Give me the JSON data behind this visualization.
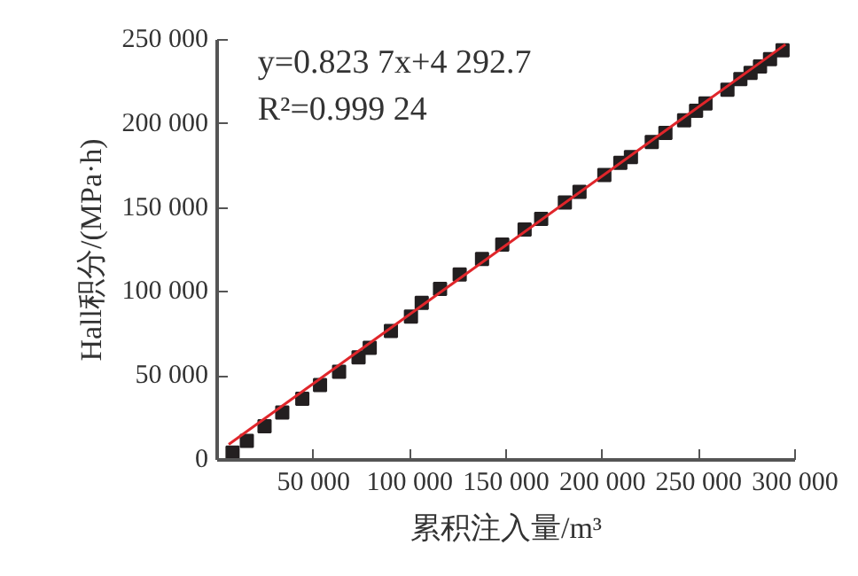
{
  "chart_data": {
    "type": "scatter",
    "xlabel": "累积注入量/m³",
    "ylabel": "Hall积分/(MPa·h)",
    "annotations": [
      "y=0.823 7x+4 292.7",
      "R²=0.999 24"
    ],
    "xlim": [
      0,
      300000
    ],
    "ylim": [
      0,
      250000
    ],
    "xticks": [
      {
        "value": 50000,
        "label": "50 000"
      },
      {
        "value": 100000,
        "label": "100 000"
      },
      {
        "value": 150000,
        "label": "150 000"
      },
      {
        "value": 200000,
        "label": "200 000"
      },
      {
        "value": 250000,
        "label": "250 000"
      },
      {
        "value": 300000,
        "label": "300 000"
      }
    ],
    "yticks": [
      {
        "value": 0,
        "label": "0"
      },
      {
        "value": 50000,
        "label": "50 000"
      },
      {
        "value": 100000,
        "label": "100 000"
      },
      {
        "value": 150000,
        "label": "150 000"
      },
      {
        "value": 200000,
        "label": "200 000"
      },
      {
        "value": 250000,
        "label": "250 000"
      }
    ],
    "grid": false,
    "marker": "square",
    "series": [
      {
        "color": "#231f20",
        "x": [
          8000,
          15400,
          24600,
          33800,
          44200,
          53400,
          63300,
          73400,
          79200,
          90200,
          100600,
          106200,
          115700,
          125900,
          137500,
          148000,
          159600,
          168200,
          180500,
          188100,
          201000,
          209300,
          214800,
          225600,
          232700,
          242400,
          248600,
          253500,
          264900,
          271600,
          276900,
          281800,
          287000,
          293500
        ],
        "values": [
          4300,
          11400,
          20000,
          28200,
          36400,
          44600,
          52500,
          61000,
          66700,
          76700,
          85300,
          93500,
          101800,
          110400,
          119600,
          128100,
          137100,
          143500,
          153200,
          159600,
          169600,
          176800,
          180300,
          189200,
          194600,
          202100,
          207800,
          212100,
          220300,
          226700,
          230300,
          234200,
          238500,
          243800
        ]
      },
      {
        "type": "line",
        "color": "#e0262b",
        "line_style": "solid",
        "marker": "none",
        "x": [
          6000,
          295000
        ],
        "values": [
          9235,
          247284
        ]
      }
    ]
  }
}
